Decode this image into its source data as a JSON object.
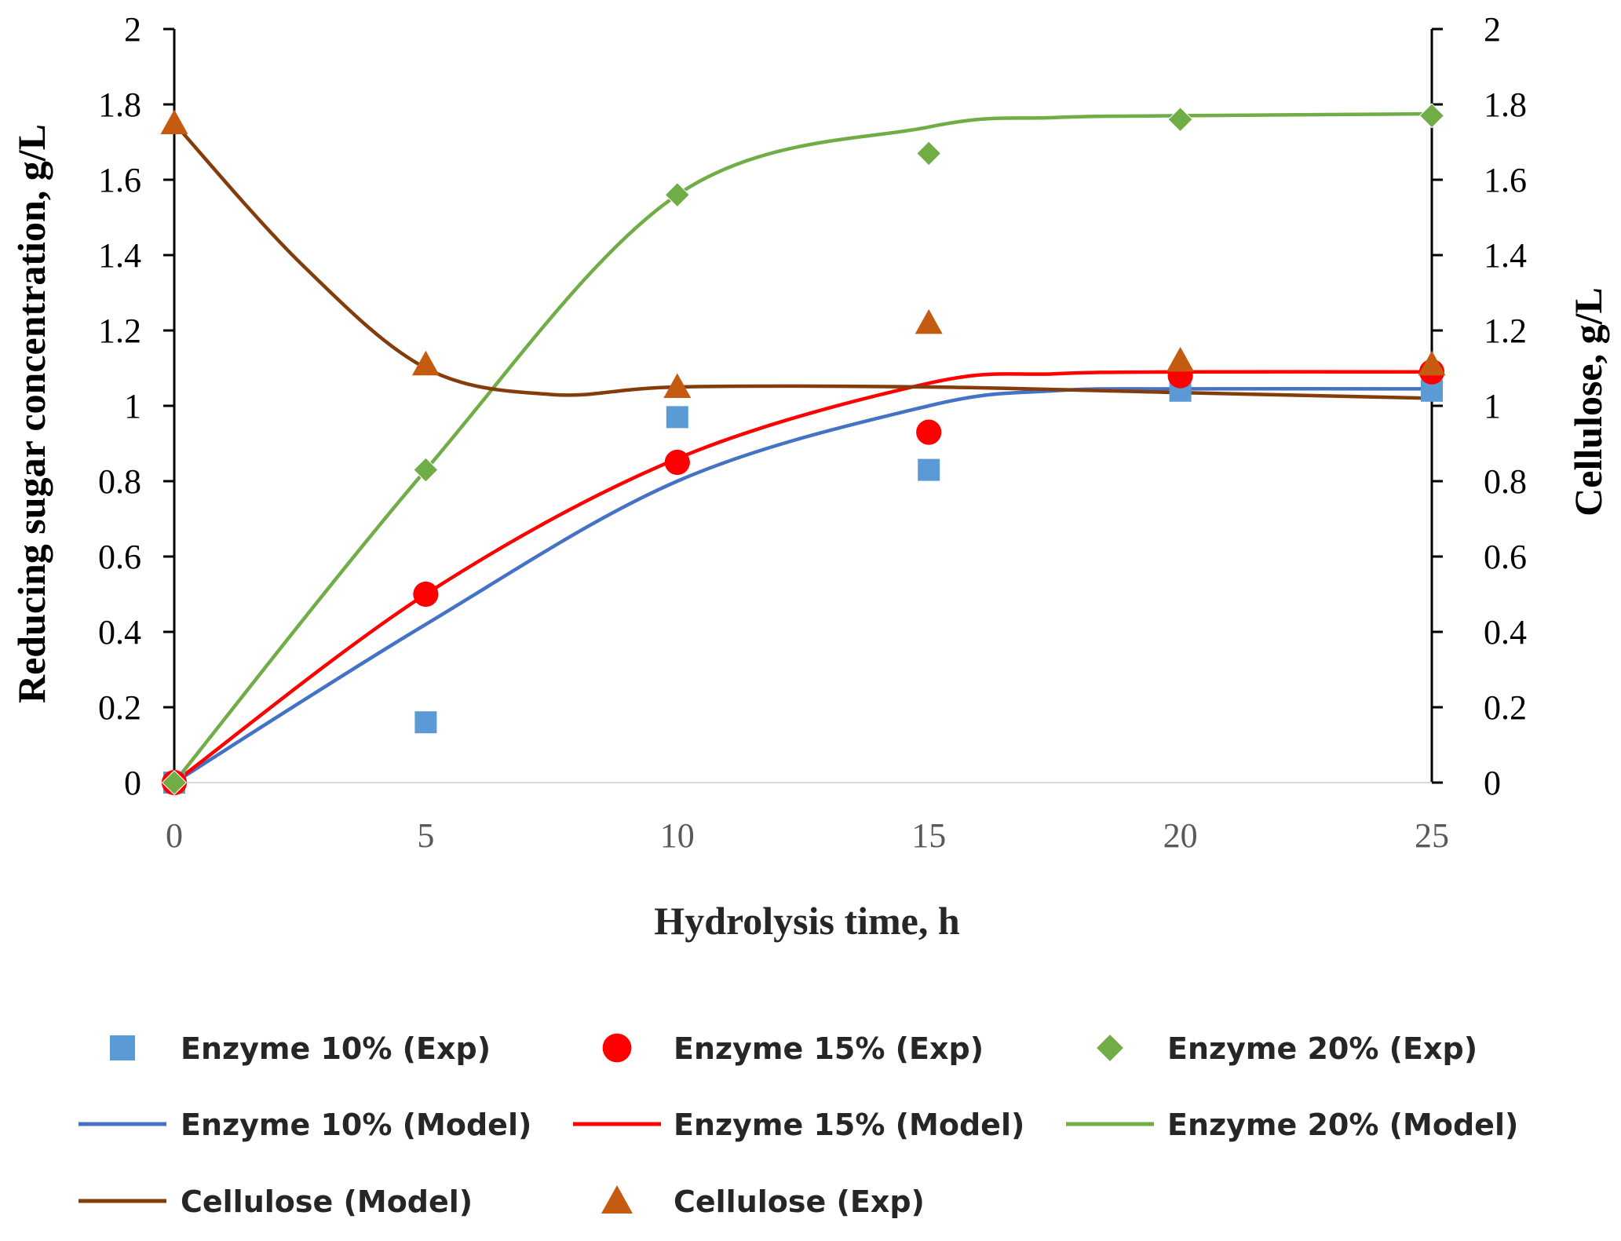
{
  "chart_data": {
    "type": "scatter+line",
    "title": "",
    "xlabel": "Hydrolysis time, h",
    "ylabel_left": "Reducing sugar concentration, g/L",
    "ylabel_right": "Cellulose, g/L",
    "xlim": [
      0,
      25
    ],
    "ylim_left": [
      0,
      2
    ],
    "ylim_right": [
      0,
      2
    ],
    "x_ticks": [
      "0",
      "5",
      "10",
      "15",
      "20",
      "25"
    ],
    "y_ticks_left": [
      "0",
      "0.2",
      "0.4",
      "0.6",
      "0.8",
      "1",
      "1.2",
      "1.4",
      "1.6",
      "1.8",
      "2"
    ],
    "y_ticks_right": [
      "0",
      "0.2",
      "0.4",
      "0.6",
      "0.8",
      "1",
      "1.2",
      "1.4",
      "1.6",
      "1.8",
      "2"
    ],
    "grid": false,
    "legend_position": "bottom",
    "series": [
      {
        "name": "Enzyme 10% (Exp)",
        "kind": "markers",
        "marker": "square",
        "color": "#5B9BD5",
        "axis": "left",
        "x": [
          0,
          5,
          10,
          15,
          20,
          25
        ],
        "y": [
          0,
          0.16,
          0.97,
          0.83,
          1.04,
          1.04
        ]
      },
      {
        "name": "Enzyme 15% (Exp)",
        "kind": "markers",
        "marker": "circle",
        "color": "#FF0000",
        "axis": "left",
        "x": [
          0,
          5,
          10,
          15,
          20,
          25
        ],
        "y": [
          0,
          0.5,
          0.85,
          0.93,
          1.08,
          1.09
        ]
      },
      {
        "name": "Enzyme 20% (Exp)",
        "kind": "markers",
        "marker": "diamond",
        "color": "#70AD47",
        "axis": "left",
        "x": [
          0,
          5,
          10,
          15,
          20,
          25
        ],
        "y": [
          0,
          0.83,
          1.56,
          1.67,
          1.76,
          1.77
        ]
      },
      {
        "name": "Enzyme 10% (Model)",
        "kind": "line",
        "color": "#4472C4",
        "axis": "left",
        "x": [
          0,
          5,
          10,
          15,
          17.5,
          20,
          25
        ],
        "y": [
          0,
          0.42,
          0.8,
          1.0,
          1.04,
          1.045,
          1.045
        ]
      },
      {
        "name": "Enzyme 15% (Model)",
        "kind": "line",
        "color": "#FF0000",
        "axis": "left",
        "x": [
          0,
          5,
          10,
          15,
          17.5,
          20,
          25
        ],
        "y": [
          0,
          0.5,
          0.86,
          1.06,
          1.085,
          1.09,
          1.09
        ]
      },
      {
        "name": "Enzyme 20% (Model)",
        "kind": "line",
        "color": "#70AD47",
        "axis": "left",
        "x": [
          0,
          5,
          10,
          15,
          17.5,
          20,
          25
        ],
        "y": [
          0,
          0.83,
          1.56,
          1.74,
          1.765,
          1.77,
          1.775
        ]
      },
      {
        "name": "Cellulose (Model)",
        "kind": "line",
        "color": "#843C0C",
        "axis": "right",
        "x": [
          0,
          2.5,
          5,
          7.5,
          10,
          15,
          20,
          25
        ],
        "y": [
          1.75,
          1.38,
          1.1,
          1.03,
          1.05,
          1.05,
          1.035,
          1.02
        ]
      },
      {
        "name": "Cellulose (Exp)",
        "kind": "markers",
        "marker": "triangle",
        "color": "#C55A11",
        "axis": "right",
        "x": [
          0,
          5,
          10,
          15,
          20,
          25
        ],
        "y": [
          1.75,
          1.11,
          1.05,
          1.22,
          1.12,
          1.11
        ]
      }
    ],
    "legend_order": [
      "Enzyme 10% (Exp)",
      "Enzyme 15% (Exp)",
      "Enzyme 20% (Exp)",
      "Enzyme 10% (Model)",
      "Enzyme 15% (Model)",
      "Enzyme 20% (Model)",
      "Cellulose (Model)",
      "Cellulose (Exp)"
    ]
  }
}
